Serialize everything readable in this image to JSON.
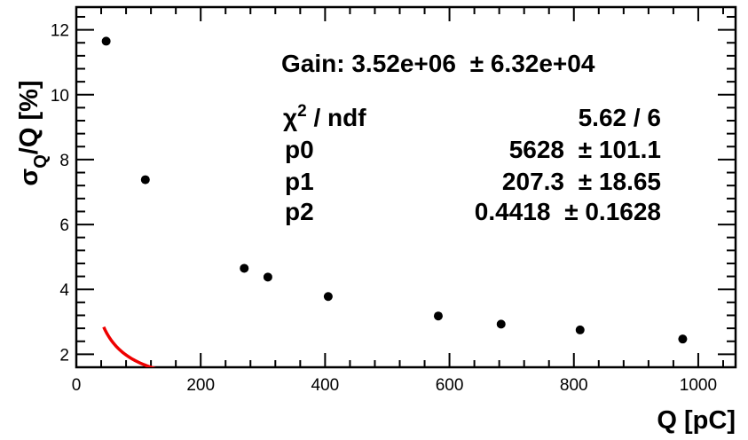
{
  "chart_data": {
    "type": "scatter",
    "title": "",
    "xlabel": "Q [pC]",
    "ylabel_main": "σ",
    "ylabel_sub": "Q",
    "ylabel_rest": "/Q [%]",
    "xlim": [
      0,
      1060
    ],
    "ylim": [
      1.6,
      12.7
    ],
    "x_ticks": [
      0,
      200,
      400,
      600,
      800,
      1000
    ],
    "y_ticks": [
      2,
      4,
      6,
      8,
      10,
      12
    ],
    "grid": false,
    "series": [
      {
        "kind": "points",
        "color": "#000000",
        "x": [
          48,
          111,
          270,
          308,
          405,
          582,
          683,
          810,
          975
        ],
        "y": [
          11.65,
          7.38,
          4.65,
          4.38,
          3.78,
          3.18,
          2.93,
          2.75,
          2.47
        ]
      },
      {
        "kind": "fit",
        "color": "#ee0000",
        "function": "sqrt(p0/x^2 + p1/x + p2)",
        "params": [
          5628,
          207.3,
          0.4418
        ],
        "x_range": [
          44,
          1060
        ]
      }
    ],
    "stats_box": {
      "gain_label": "Gain:",
      "gain_value": "3.52e+06",
      "gain_error": "± 6.32e+04",
      "chi2_symbol": "χ",
      "chi2_power": "2",
      "chi2_rest": " / ndf",
      "chi2_value": "5.62 / 6",
      "rows": [
        {
          "name": "p0",
          "value": "5628",
          "error": "± 101.1"
        },
        {
          "name": "p1",
          "value": "207.3",
          "error": "± 18.65"
        },
        {
          "name": "p2",
          "value": "0.4418",
          "error": "± 0.1628"
        }
      ]
    }
  }
}
